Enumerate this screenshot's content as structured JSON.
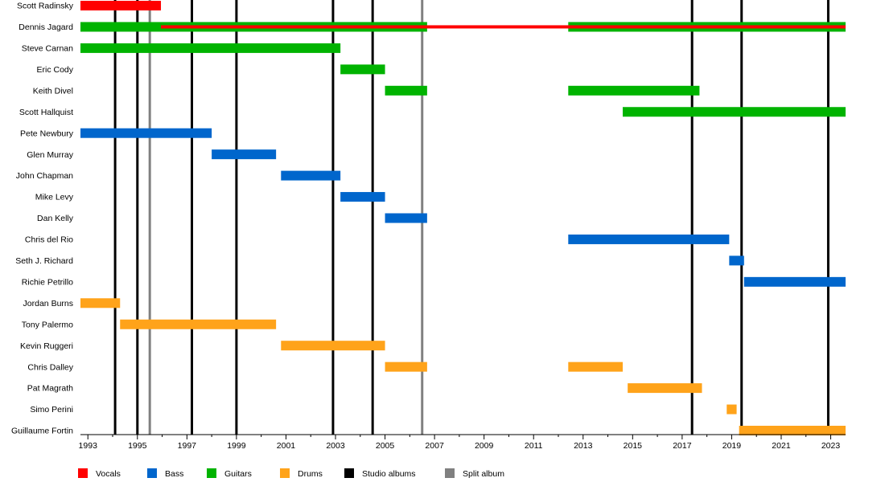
{
  "chart_data": {
    "type": "timeline",
    "x_axis": {
      "range": [
        1992.7,
        2023.6
      ],
      "ticks": [
        "1993",
        "1995",
        "1997",
        "1999",
        "2001",
        "2003",
        "2005",
        "2007",
        "2009",
        "2011",
        "2013",
        "2015",
        "2017",
        "2019",
        "2021",
        "2023"
      ]
    },
    "members": [
      {
        "name": "Scott Radinsky",
        "periods": [
          {
            "role": "Vocals",
            "start": 1992.7,
            "end": 1995.95
          }
        ]
      },
      {
        "name": "Dennis Jagard",
        "periods": [
          {
            "role": "Guitars",
            "start": 1992.7,
            "end": 2006.7
          },
          {
            "role": "Guitars",
            "start": 2012.4,
            "end": 2023.6
          },
          {
            "role": "Vocals",
            "start": 1995.95,
            "end": 2023.6,
            "thin": true
          }
        ]
      },
      {
        "name": "Steve Carnan",
        "periods": [
          {
            "role": "Guitars",
            "start": 1992.7,
            "end": 2003.2
          }
        ]
      },
      {
        "name": "Eric Cody",
        "periods": [
          {
            "role": "Guitars",
            "start": 2003.2,
            "end": 2005.0
          }
        ]
      },
      {
        "name": "Keith Divel",
        "periods": [
          {
            "role": "Guitars",
            "start": 2005.0,
            "end": 2006.7
          },
          {
            "role": "Guitars",
            "start": 2012.4,
            "end": 2017.7
          }
        ]
      },
      {
        "name": "Scott Hallquist",
        "periods": [
          {
            "role": "Guitars",
            "start": 2014.6,
            "end": 2023.6
          }
        ]
      },
      {
        "name": "Pete Newbury",
        "periods": [
          {
            "role": "Bass",
            "start": 1992.7,
            "end": 1998.0
          }
        ]
      },
      {
        "name": "Glen Murray",
        "periods": [
          {
            "role": "Bass",
            "start": 1998.0,
            "end": 2000.6
          }
        ]
      },
      {
        "name": "John Chapman",
        "periods": [
          {
            "role": "Bass",
            "start": 2000.8,
            "end": 2003.2
          }
        ]
      },
      {
        "name": "Mike Levy",
        "periods": [
          {
            "role": "Bass",
            "start": 2003.2,
            "end": 2005.0
          }
        ]
      },
      {
        "name": "Dan Kelly",
        "periods": [
          {
            "role": "Bass",
            "start": 2005.0,
            "end": 2006.7
          }
        ]
      },
      {
        "name": "Chris del Rio",
        "periods": [
          {
            "role": "Bass",
            "start": 2012.4,
            "end": 2018.9
          }
        ]
      },
      {
        "name": "Seth J. Richard",
        "periods": [
          {
            "role": "Bass",
            "start": 2018.9,
            "end": 2019.5
          }
        ]
      },
      {
        "name": "Richie Petrillo",
        "periods": [
          {
            "role": "Bass",
            "start": 2019.5,
            "end": 2023.6
          }
        ]
      },
      {
        "name": "Jordan Burns",
        "periods": [
          {
            "role": "Drums",
            "start": 1992.7,
            "end": 1994.3
          }
        ]
      },
      {
        "name": "Tony Palermo",
        "periods": [
          {
            "role": "Drums",
            "start": 1994.3,
            "end": 2000.6
          }
        ]
      },
      {
        "name": "Kevin Ruggeri",
        "periods": [
          {
            "role": "Drums",
            "start": 2000.8,
            "end": 2005.0
          }
        ]
      },
      {
        "name": "Chris Dalley",
        "periods": [
          {
            "role": "Drums",
            "start": 2005.0,
            "end": 2006.7
          },
          {
            "role": "Drums",
            "start": 2012.4,
            "end": 2014.6
          }
        ]
      },
      {
        "name": "Pat Magrath",
        "periods": [
          {
            "role": "Drums",
            "start": 2014.8,
            "end": 2017.8
          }
        ]
      },
      {
        "name": "Simo Perini",
        "periods": [
          {
            "role": "Drums",
            "start": 2018.8,
            "end": 2019.2
          }
        ]
      },
      {
        "name": "Guillaume Fortin",
        "periods": [
          {
            "role": "Drums",
            "start": 2019.3,
            "end": 2023.6
          }
        ]
      }
    ],
    "events": [
      {
        "type": "Studio albums",
        "year": 1994.1
      },
      {
        "type": "Studio albums",
        "year": 1995.0
      },
      {
        "type": "Split album",
        "year": 1995.5
      },
      {
        "type": "Studio albums",
        "year": 1997.2
      },
      {
        "type": "Studio albums",
        "year": 1999.0
      },
      {
        "type": "Studio albums",
        "year": 2002.9
      },
      {
        "type": "Studio albums",
        "year": 2004.5
      },
      {
        "type": "Split album",
        "year": 2006.5
      },
      {
        "type": "Studio albums",
        "year": 2017.4
      },
      {
        "type": "Studio albums",
        "year": 2019.4
      },
      {
        "type": "Studio albums",
        "year": 2022.9
      }
    ],
    "legend": {
      "placement": "bottom",
      "items": [
        {
          "label": "Vocals",
          "color": "#ff0000"
        },
        {
          "label": "Bass",
          "color": "#0066cc"
        },
        {
          "label": "Guitars",
          "color": "#00b300"
        },
        {
          "label": "Drums",
          "color": "#ffa31a"
        },
        {
          "label": "Studio albums",
          "color": "#000000"
        },
        {
          "label": "Split album",
          "color": "#808080"
        }
      ]
    }
  }
}
